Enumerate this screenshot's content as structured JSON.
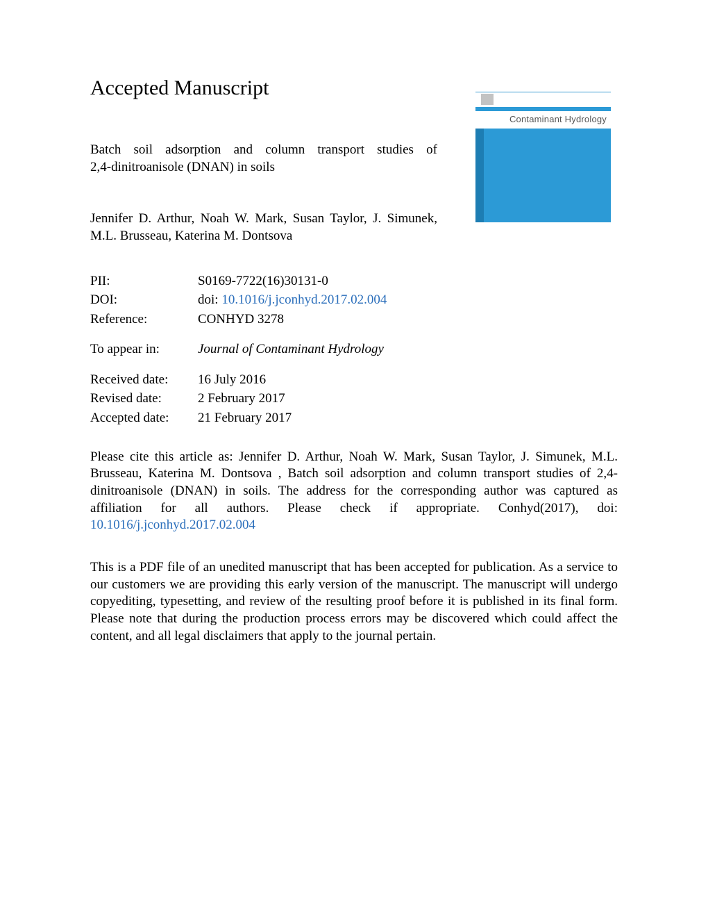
{
  "heading": "Accepted Manuscript",
  "title_line1": "Batch soil adsorption and column transport studies of",
  "title_line2": "2,4-dinitroanisole (DNAN) in soils",
  "authors_line1": "Jennifer D. Arthur, Noah W. Mark, Susan Taylor, J. Simunek,",
  "authors_line2": "M.L. Brusseau, Katerina M. Dontsova",
  "meta": {
    "pii_label": "PII:",
    "pii_value": "S0169-7722(16)30131-0",
    "doi_label": "DOI:",
    "doi_prefix": "doi: ",
    "doi_value": "10.1016/j.jconhyd.2017.02.004",
    "reference_label": "Reference:",
    "reference_value": "CONHYD 3278",
    "toappear_label": "To appear in:",
    "toappear_value": "Journal of Contaminant Hydrology",
    "received_label": "Received date:",
    "received_value": "16 July 2016",
    "revised_label": "Revised date:",
    "revised_value": "2 February 2017",
    "accepted_label": "Accepted date:",
    "accepted_value": "21 February 2017"
  },
  "citation_text": "Please cite this article as: Jennifer D. Arthur, Noah W. Mark, Susan Taylor, J. Simunek, M.L. Brusseau, Katerina M. Dontsova , Batch soil adsorption and column transport studies of 2,4-dinitroanisole (DNAN) in soils. The address for the corresponding author was captured as affiliation for all authors. Please check if appropriate. Conhyd(2017), doi: ",
  "citation_doi": "10.1016/j.jconhyd.2017.02.004",
  "disclaimer": "This is a PDF file of an unedited manuscript that has been accepted for publication. As a service to our customers we are providing this early version of the manuscript. The manuscript will undergo copyediting, typesetting, and review of the resulting proof before it is published in its final form. Please note that during the production process errors may be discovered which could affect the content, and all legal disclaimers that apply to the journal pertain.",
  "cover": {
    "journal_name": "Contaminant Hydrology",
    "stripe_color": "#2c9ad6",
    "body_color": "#2c9ad6",
    "body_dark_color": "#1d7db3",
    "border_color": "#3b9bd1"
  },
  "colors": {
    "link": "#2a6ebb",
    "text": "#000000",
    "background": "#ffffff"
  }
}
